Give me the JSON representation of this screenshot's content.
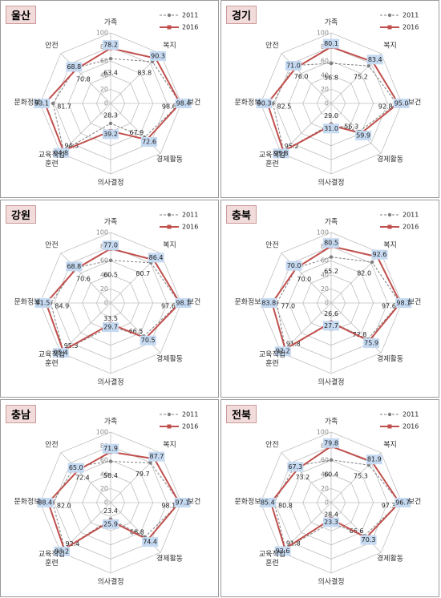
{
  "chart_data": [
    {
      "type": "radar",
      "title": "울산",
      "categories": [
        "가족",
        "복지",
        "보건",
        "경제활동",
        "의사결정",
        "교육직업\n훈련",
        "문화정보",
        "안전"
      ],
      "rlim": [
        0,
        100
      ],
      "rticks": [
        0,
        20,
        40,
        60,
        80,
        100
      ],
      "grid": true,
      "legend": "upper right",
      "series": [
        {
          "name": "2011",
          "color": "#7f7f7f",
          "line_style": "dashed",
          "marker": "circle",
          "values": [
            63.4,
            83.8,
            98.6,
            67.9,
            28.3,
            94.3,
            81.7,
            70.8
          ],
          "value_labels": [
            "63.4",
            "83.8",
            "98.6",
            "67.9",
            "28.3",
            "94.3",
            "81.7",
            "70.8"
          ]
        },
        {
          "name": "2016",
          "color": "#c0504d",
          "line_style": "solid",
          "marker": "square",
          "values": [
            78.2,
            90.3,
            98.4,
            72.6,
            39.2,
            94.8,
            93.1,
            68.8
          ],
          "value_labels": [
            "78.2",
            "90.3",
            "98.4",
            "72.6",
            "39.2",
            "94.8",
            "93.1",
            "68.8"
          ]
        }
      ]
    },
    {
      "type": "radar",
      "title": "경기",
      "categories": [
        "가족",
        "복지",
        "보건",
        "경제활동",
        "의사결정",
        "교육직업\n훈련",
        "문화정보",
        "안전"
      ],
      "rlim": [
        0,
        100
      ],
      "rticks": [
        0,
        20,
        40,
        60,
        80,
        100
      ],
      "grid": true,
      "legend": "upper right",
      "series": [
        {
          "name": "2011",
          "color": "#7f7f7f",
          "line_style": "dashed",
          "marker": "circle",
          "values": [
            56.8,
            75.2,
            92.8,
            56.3,
            29.0,
            95.2,
            82.5,
            76.0
          ],
          "value_labels": [
            "56.8",
            "75.2",
            "92.8",
            "56.3",
            "29.0",
            "95.2",
            "82.5",
            "76.0"
          ]
        },
        {
          "name": "2016",
          "color": "#c0504d",
          "line_style": "solid",
          "marker": "square",
          "values": [
            80.1,
            83.4,
            95.0,
            59.9,
            31.0,
            95.8,
            90.3,
            71.0
          ],
          "value_labels": [
            "80.1",
            "83.4",
            "95.0",
            "59.9",
            "31.0",
            "95.8",
            "90.3",
            "71.0"
          ]
        }
      ]
    },
    {
      "type": "radar",
      "title": "강원",
      "categories": [
        "가족",
        "복지",
        "보건",
        "경제활동",
        "의사결정",
        "교육직업\n훈련",
        "문화정보",
        "안전"
      ],
      "rlim": [
        0,
        100
      ],
      "rticks": [
        0,
        20,
        40,
        60,
        80,
        100
      ],
      "grid": true,
      "legend": "upper right",
      "series": [
        {
          "name": "2011",
          "color": "#7f7f7f",
          "line_style": "dashed",
          "marker": "circle",
          "values": [
            60.5,
            80.7,
            97.6,
            66.5,
            33.5,
            95.3,
            84.9,
            70.6
          ],
          "value_labels": [
            "60.5",
            "80.7",
            "97.6",
            "66.5",
            "33.5",
            "95.3",
            "84.9",
            "70.6"
          ]
        },
        {
          "name": "2016",
          "color": "#c0504d",
          "line_style": "solid",
          "marker": "square",
          "values": [
            77.0,
            86.4,
            98.1,
            70.5,
            29.7,
            95.4,
            91.5,
            68.8
          ],
          "value_labels": [
            "77.0",
            "86.4",
            "98.1",
            "70.5",
            "29.7",
            "95.4",
            "91.5",
            "68.8"
          ]
        }
      ]
    },
    {
      "type": "radar",
      "title": "충북",
      "categories": [
        "가족",
        "복지",
        "보건",
        "경제활동",
        "의사결정",
        "교육직업\n훈련",
        "문화정보",
        "안전"
      ],
      "rlim": [
        0,
        100
      ],
      "rticks": [
        0,
        20,
        40,
        60,
        80,
        100
      ],
      "grid": true,
      "legend": "upper right",
      "series": [
        {
          "name": "2011",
          "color": "#7f7f7f",
          "line_style": "dashed",
          "marker": "circle",
          "values": [
            65.2,
            82.0,
            97.6,
            72.8,
            26.6,
            91.8,
            77.0,
            70.0
          ],
          "value_labels": [
            "65.2",
            "82.0",
            "97.6",
            "72.8",
            "26.6",
            "91.8",
            "77.0",
            "70.0"
          ]
        },
        {
          "name": "2016",
          "color": "#c0504d",
          "line_style": "solid",
          "marker": "square",
          "values": [
            80.5,
            92.6,
            98.1,
            75.9,
            27.7,
            92.2,
            83.8,
            70.0
          ],
          "value_labels": [
            "80.5",
            "92.6",
            "98.1",
            "75.9",
            "27.7",
            "92.2",
            "83.8",
            "70.0"
          ]
        }
      ]
    },
    {
      "type": "radar",
      "title": "충남",
      "categories": [
        "가족",
        "복지",
        "보건",
        "경제활동",
        "의사결정",
        "교육직업\n훈련",
        "문화정보",
        "안전"
      ],
      "rlim": [
        0,
        100
      ],
      "rticks": [
        0,
        20,
        40,
        60,
        80,
        100
      ],
      "grid": true,
      "legend": "upper right",
      "series": [
        {
          "name": "2011",
          "color": "#7f7f7f",
          "line_style": "dashed",
          "marker": "circle",
          "values": [
            58.4,
            79.7,
            98.1,
            68.8,
            23.4,
            92.4,
            82.0,
            72.4
          ],
          "value_labels": [
            "58.4",
            "79.7",
            "98.1",
            "68.8",
            "23.4",
            "92.4",
            "82.0",
            "72.4"
          ]
        },
        {
          "name": "2016",
          "color": "#c0504d",
          "line_style": "solid",
          "marker": "square",
          "values": [
            71.9,
            87.7,
            97.1,
            74.4,
            25.9,
            93.2,
            88.4,
            65.0
          ],
          "value_labels": [
            "71.9",
            "87.7",
            "97.1",
            "74.4",
            "25.9",
            "93.2",
            "88.4",
            "65.0"
          ]
        }
      ]
    },
    {
      "type": "radar",
      "title": "전북",
      "categories": [
        "가족",
        "복지",
        "보건",
        "경제활동",
        "의사결정",
        "교육직업\n훈련",
        "문화정보",
        "안전"
      ],
      "rlim": [
        0,
        100
      ],
      "rticks": [
        0,
        20,
        40,
        60,
        80,
        100
      ],
      "grid": true,
      "legend": "upper right",
      "series": [
        {
          "name": "2011",
          "color": "#7f7f7f",
          "line_style": "dashed",
          "marker": "circle",
          "values": [
            60.4,
            75.3,
            97.3,
            66.6,
            28.4,
            91.8,
            80.8,
            73.2
          ],
          "value_labels": [
            "60.4",
            "75.3",
            "97.3",
            "66.6",
            "28.4",
            "91.8",
            "80.8",
            "73.2"
          ]
        },
        {
          "name": "2016",
          "color": "#c0504d",
          "line_style": "solid",
          "marker": "square",
          "values": [
            79.8,
            81.9,
            96.7,
            70.3,
            23.3,
            92.6,
            85.4,
            67.3
          ],
          "value_labels": [
            "79.8",
            "81.9",
            "96.7",
            "70.3",
            "23.3",
            "92.6",
            "85.4",
            "67.3"
          ]
        }
      ]
    }
  ]
}
